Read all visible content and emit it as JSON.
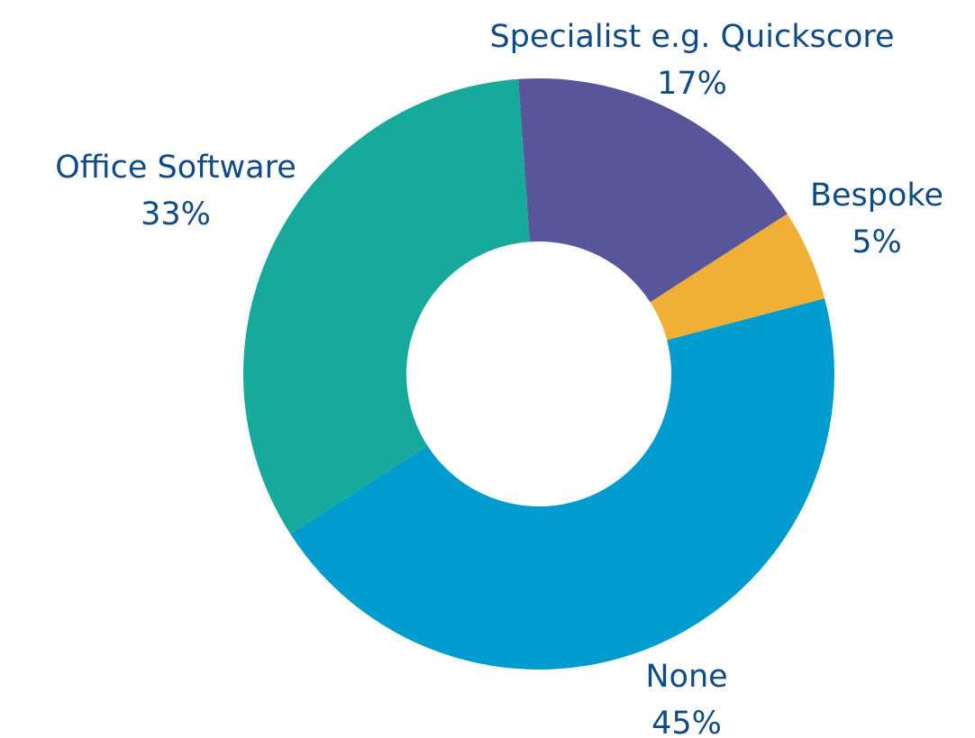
{
  "chart_data": {
    "type": "pie",
    "categories": [
      "Specialist e.g. Quickscore",
      "Bespoke",
      "None",
      "Office Software"
    ],
    "values": [
      17,
      5,
      45,
      33
    ],
    "value_labels": [
      "17%",
      "5%",
      "45%",
      "33%"
    ],
    "colors": [
      "#58559a",
      "#f0b035",
      "#009ccf",
      "#17a99b"
    ]
  }
}
